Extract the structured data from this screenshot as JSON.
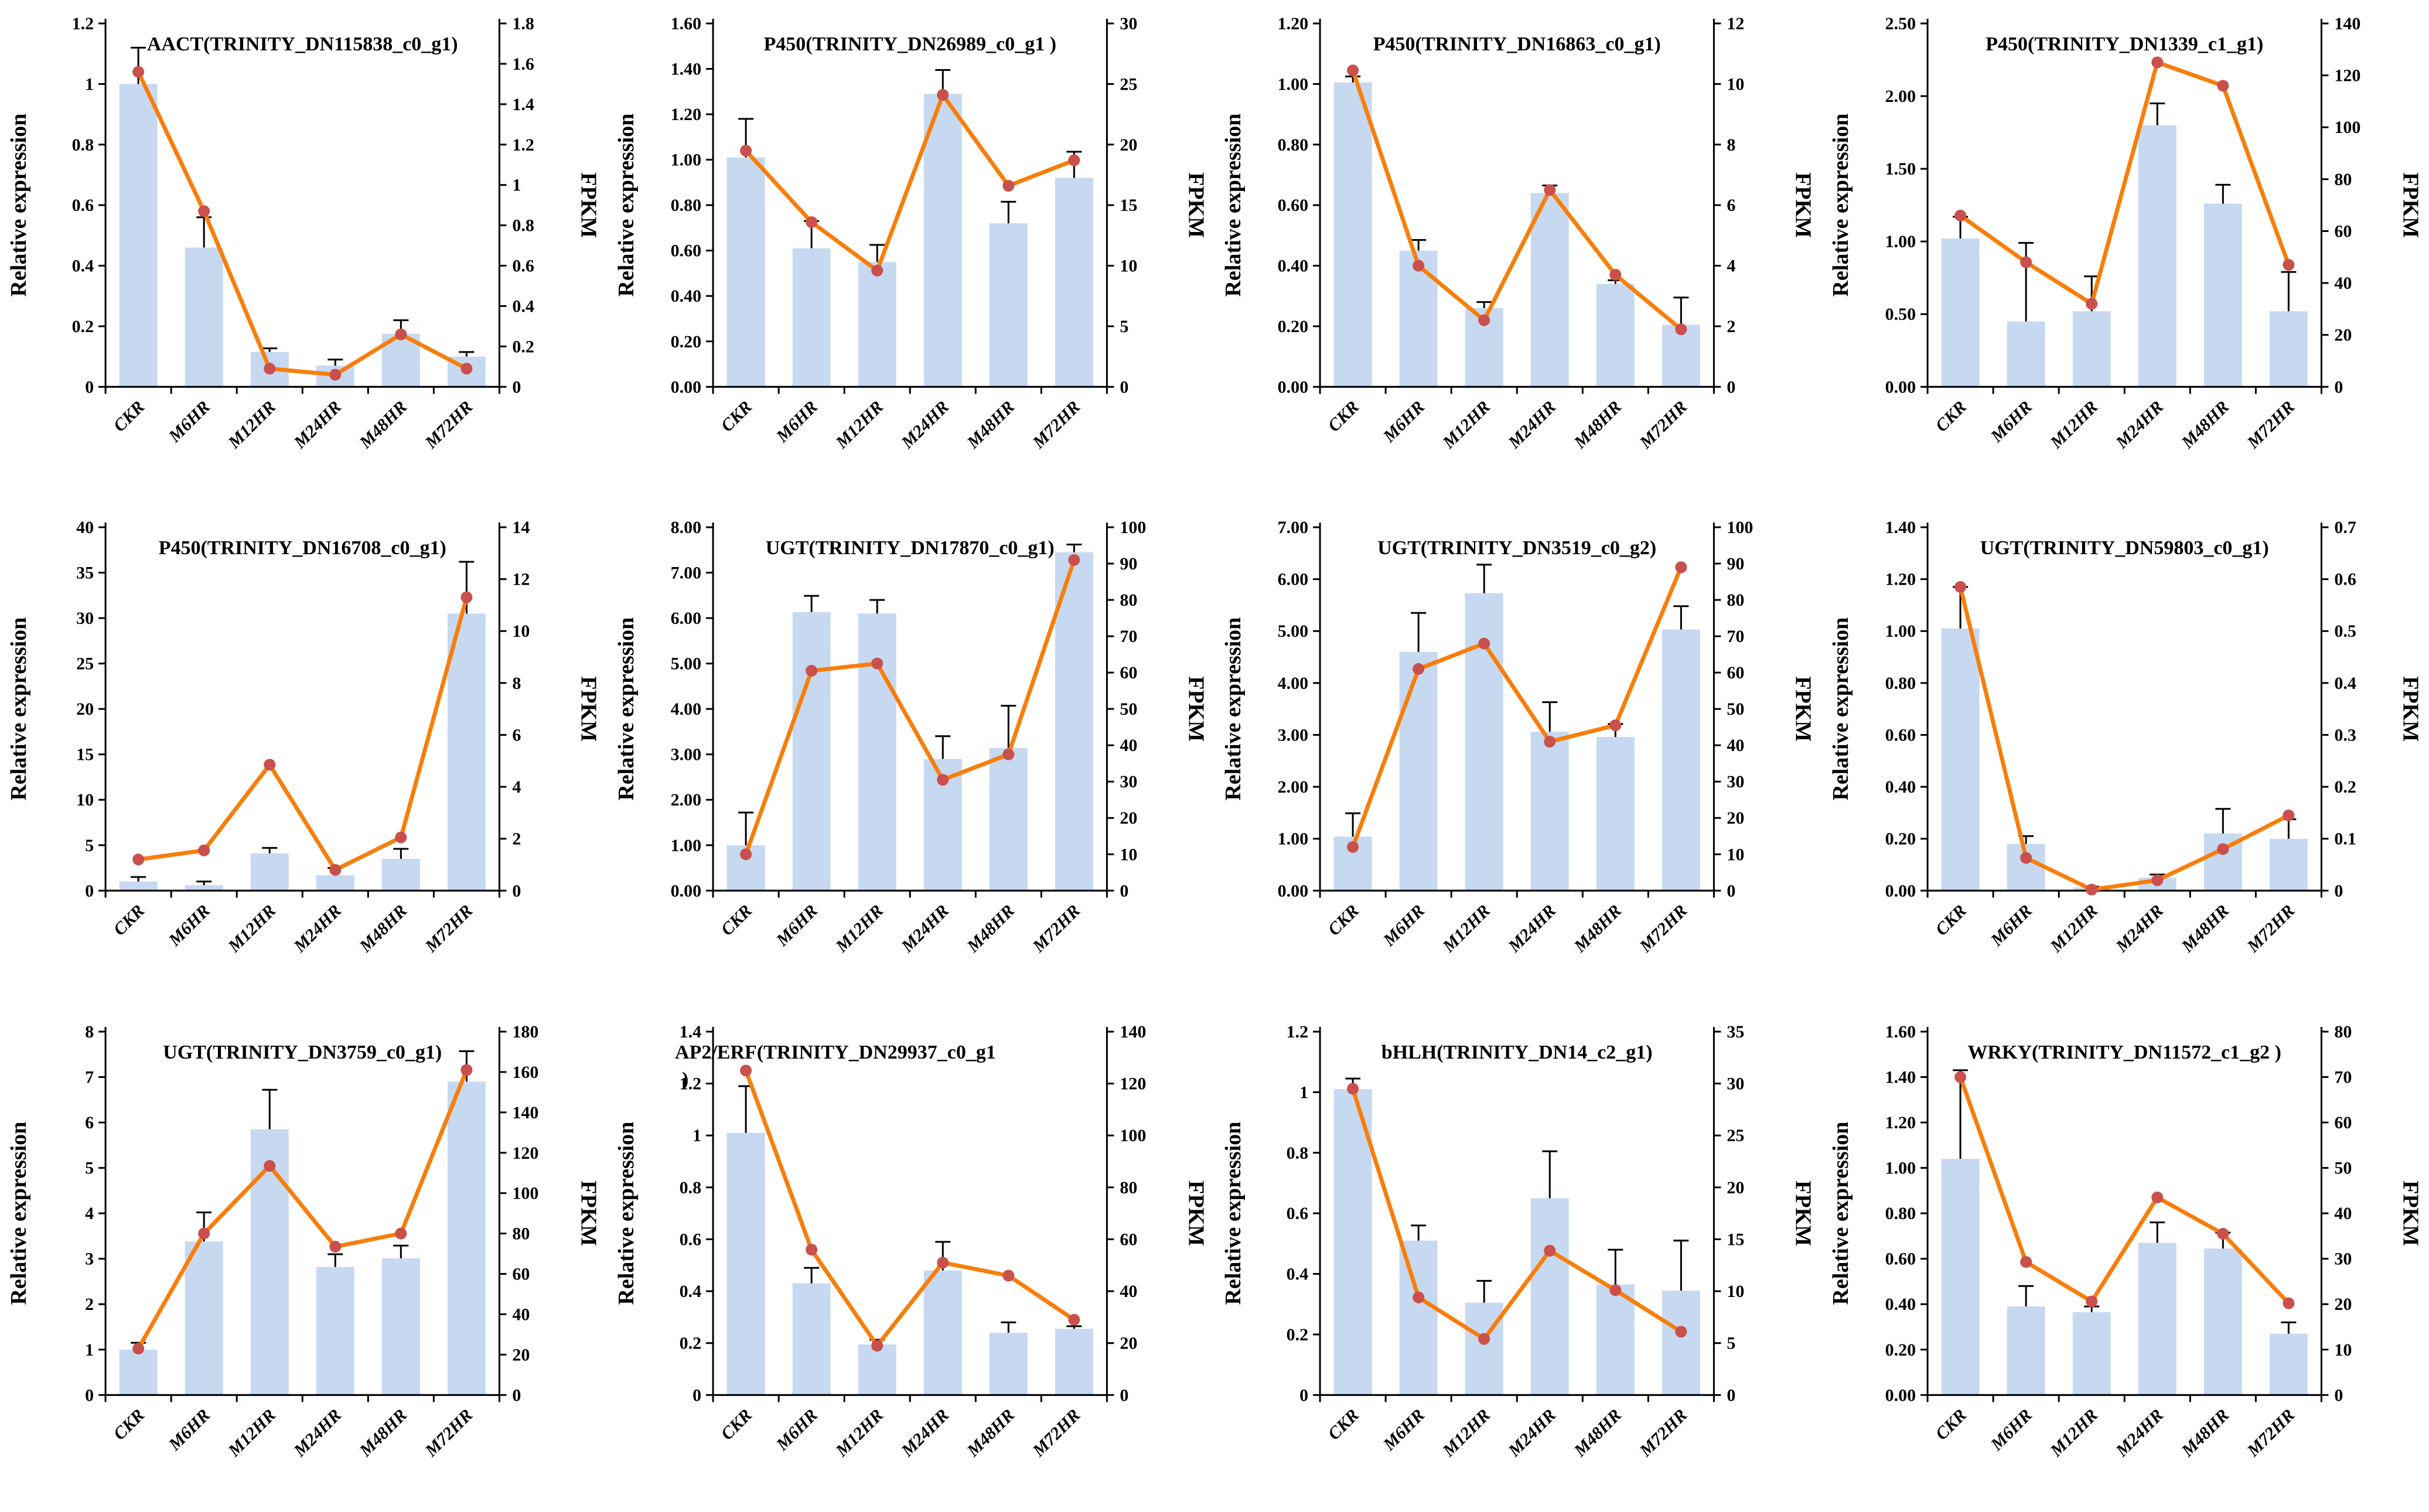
{
  "figure": {
    "categories": [
      "CKR",
      "M6HR",
      "M12HR",
      "M24HR",
      "M48HR",
      "M72HR"
    ],
    "left_axis_title": "Relative expression",
    "right_axis_title": "FPKM"
  },
  "colors": {
    "bar": "#c7d9f0",
    "line": "#f87e0b",
    "marker": "#c9504c",
    "axis": "#000000",
    "error": "#000000"
  },
  "chart_data": [
    {
      "type": "bar+line",
      "title": "AACT(TRINITY_DN115838_c0_g1)",
      "left": {
        "label": "Relative expression",
        "min": 0,
        "max": 1.2,
        "ticks": [
          "0",
          "0.2",
          "0.4",
          "0.6",
          "0.8",
          "1",
          "1.2"
        ]
      },
      "right": {
        "label": "FPKM",
        "min": 0,
        "max": 1.8,
        "ticks": [
          "0",
          "0.2",
          "0.4",
          "0.6",
          "0.8",
          "1",
          "1.2",
          "1.4",
          "1.6",
          "1.8"
        ]
      },
      "categories": [
        "CKR",
        "M6HR",
        "M12HR",
        "M24HR",
        "M48HR",
        "M72HR"
      ],
      "bars": [
        1.0,
        0.46,
        0.115,
        0.07,
        0.175,
        0.1
      ],
      "errors": [
        0.12,
        0.1,
        0.012,
        0.02,
        0.045,
        0.015
      ],
      "fpkm": [
        1.56,
        0.87,
        0.09,
        0.06,
        0.26,
        0.09
      ]
    },
    {
      "type": "bar+line",
      "title": "P450(TRINITY_DN26989_c0_g1 )",
      "left": {
        "label": "Relative expression",
        "min": 0,
        "max": 1.6,
        "ticks": [
          "0.00",
          "0.20",
          "0.40",
          "0.60",
          "0.80",
          "1.00",
          "1.20",
          "1.40",
          "1.60"
        ]
      },
      "right": {
        "label": "FPKM",
        "min": 0,
        "max": 30,
        "ticks": [
          "0",
          "5",
          "10",
          "15",
          "20",
          "25",
          "30"
        ]
      },
      "categories": [
        "CKR",
        "M6HR",
        "M12HR",
        "M24HR",
        "M48HR",
        "M72HR"
      ],
      "bars": [
        1.01,
        0.61,
        0.55,
        1.29,
        0.72,
        0.92
      ],
      "errors": [
        0.17,
        0.12,
        0.075,
        0.105,
        0.095,
        0.115
      ],
      "fpkm": [
        19.5,
        13.6,
        9.6,
        24.1,
        16.6,
        18.7
      ]
    },
    {
      "type": "bar+line",
      "title": "P450(TRINITY_DN16863_c0_g1)",
      "left": {
        "label": "Relative expression",
        "min": 0,
        "max": 1.2,
        "ticks": [
          "0.00",
          "0.20",
          "0.40",
          "0.60",
          "0.80",
          "1.00",
          "1.20"
        ]
      },
      "right": {
        "label": "FPKM",
        "min": 0,
        "max": 12,
        "ticks": [
          "0",
          "2",
          "4",
          "6",
          "8",
          "10",
          "12"
        ]
      },
      "categories": [
        "CKR",
        "M6HR",
        "M12HR",
        "M24HR",
        "M48HR",
        "M72HR"
      ],
      "bars": [
        1.005,
        0.45,
        0.26,
        0.64,
        0.34,
        0.205
      ],
      "errors": [
        0.02,
        0.035,
        0.02,
        0.025,
        0.012,
        0.09
      ],
      "fpkm": [
        10.45,
        4.0,
        2.2,
        6.5,
        3.7,
        1.9
      ]
    },
    {
      "type": "bar+line",
      "title": "P450(TRINITY_DN1339_c1_g1)",
      "left": {
        "label": "Relative expression",
        "min": 0,
        "max": 2.5,
        "ticks": [
          "0.00",
          "0.50",
          "1.00",
          "1.50",
          "2.00",
          "2.50"
        ]
      },
      "right": {
        "label": "FPKM",
        "min": 0,
        "max": 140,
        "ticks": [
          "0",
          "20",
          "40",
          "60",
          "80",
          "100",
          "120",
          "140"
        ]
      },
      "categories": [
        "CKR",
        "M6HR",
        "M12HR",
        "M24HR",
        "M48HR",
        "M72HR"
      ],
      "bars": [
        1.02,
        0.45,
        0.52,
        1.8,
        1.26,
        0.52
      ],
      "errors": [
        0.15,
        0.54,
        0.24,
        0.15,
        0.13,
        0.27
      ],
      "fpkm": [
        66,
        48,
        32,
        125,
        116,
        47
      ]
    },
    {
      "type": "bar+line",
      "title": "P450(TRINITY_DN16708_c0_g1)",
      "left": {
        "label": "Relative expression",
        "min": 0,
        "max": 40,
        "ticks": [
          "0",
          "5",
          "10",
          "15",
          "20",
          "25",
          "30",
          "35",
          "40"
        ]
      },
      "right": {
        "label": "FPKM",
        "min": 0,
        "max": 14,
        "ticks": [
          "0",
          "2",
          "4",
          "6",
          "8",
          "10",
          "12",
          "14"
        ]
      },
      "categories": [
        "CKR",
        "M6HR",
        "M12HR",
        "M24HR",
        "M48HR",
        "M72HR"
      ],
      "bars": [
        1.0,
        0.6,
        4.1,
        1.7,
        3.5,
        30.5
      ],
      "errors": [
        0.5,
        0.4,
        0.6,
        0.8,
        1.1,
        5.7
      ],
      "fpkm": [
        1.2,
        1.55,
        4.85,
        0.8,
        2.05,
        11.3
      ]
    },
    {
      "type": "bar+line",
      "title": "UGT(TRINITY_DN17870_c0_g1)",
      "left": {
        "label": "Relative expression",
        "min": 0,
        "max": 8,
        "ticks": [
          "0.00",
          "1.00",
          "2.00",
          "3.00",
          "4.00",
          "5.00",
          "6.00",
          "7.00",
          "8.00"
        ]
      },
      "right": {
        "label": "FPKM",
        "min": 0,
        "max": 100,
        "ticks": [
          "0",
          "10",
          "20",
          "30",
          "40",
          "50",
          "60",
          "70",
          "80",
          "90",
          "100"
        ]
      },
      "categories": [
        "CKR",
        "M6HR",
        "M12HR",
        "M24HR",
        "M48HR",
        "M72HR"
      ],
      "bars": [
        1.0,
        6.13,
        6.1,
        2.9,
        3.14,
        7.45
      ],
      "errors": [
        0.72,
        0.36,
        0.3,
        0.5,
        0.93,
        0.17
      ],
      "fpkm": [
        10,
        60.5,
        62.5,
        30.5,
        37.5,
        91
      ]
    },
    {
      "type": "bar+line",
      "title": "UGT(TRINITY_DN3519_c0_g2)",
      "left": {
        "label": "Relative expression",
        "min": 0,
        "max": 7,
        "ticks": [
          "0.00",
          "1.00",
          "2.00",
          "3.00",
          "4.00",
          "5.00",
          "6.00",
          "7.00"
        ]
      },
      "right": {
        "label": "FPKM",
        "min": 0,
        "max": 100,
        "ticks": [
          "0",
          "10",
          "20",
          "30",
          "40",
          "50",
          "60",
          "70",
          "80",
          "90",
          "100"
        ]
      },
      "categories": [
        "CKR",
        "M6HR",
        "M12HR",
        "M24HR",
        "M48HR",
        "M72HR"
      ],
      "bars": [
        1.04,
        4.6,
        5.73,
        3.06,
        2.96,
        5.03
      ],
      "errors": [
        0.45,
        0.75,
        0.55,
        0.57,
        0.25,
        0.45
      ],
      "fpkm": [
        12,
        61,
        68,
        41,
        45.5,
        89
      ]
    },
    {
      "type": "bar+line",
      "title": "UGT(TRINITY_DN59803_c0_g1)",
      "left": {
        "label": "Relative expression",
        "min": 0,
        "max": 1.4,
        "ticks": [
          "0.00",
          "0.20",
          "0.40",
          "0.60",
          "0.80",
          "1.00",
          "1.20",
          "1.40"
        ]
      },
      "right": {
        "label": "FPKM",
        "min": 0,
        "max": 0.7,
        "ticks": [
          "0",
          "0.1",
          "0.2",
          "0.3",
          "0.4",
          "0.5",
          "0.6",
          "0.7"
        ]
      },
      "categories": [
        "CKR",
        "M6HR",
        "M12HR",
        "M24HR",
        "M48HR",
        "M72HR"
      ],
      "bars": [
        1.01,
        0.18,
        0.012,
        0.05,
        0.22,
        0.2
      ],
      "errors": [
        0.16,
        0.03,
        0.003,
        0.012,
        0.095,
        0.075
      ],
      "fpkm": [
        0.585,
        0.063,
        0.002,
        0.02,
        0.08,
        0.145
      ]
    },
    {
      "type": "bar+line",
      "title": "UGT(TRINITY_DN3759_c0_g1)",
      "left": {
        "label": "Relative expression",
        "min": 0,
        "max": 8,
        "ticks": [
          "0",
          "1",
          "2",
          "3",
          "4",
          "5",
          "6",
          "7",
          "8"
        ]
      },
      "right": {
        "label": "FPKM",
        "min": 0,
        "max": 180,
        "ticks": [
          "0",
          "20",
          "40",
          "60",
          "80",
          "100",
          "120",
          "140",
          "160",
          "180"
        ]
      },
      "categories": [
        "CKR",
        "M6HR",
        "M12HR",
        "M24HR",
        "M48HR",
        "M72HR"
      ],
      "bars": [
        1.0,
        3.38,
        5.85,
        2.82,
        3.01,
        6.9
      ],
      "errors": [
        0.15,
        0.64,
        0.87,
        0.28,
        0.28,
        0.67
      ],
      "fpkm": [
        23,
        80,
        113.5,
        73.5,
        80,
        161
      ]
    },
    {
      "type": "bar+line",
      "title": "AP2/ERF(TRINITY_DN29937_c0_g1",
      "title2": ")",
      "title_align": "left",
      "left": {
        "label": "Relative expression",
        "min": 0,
        "max": 1.4,
        "ticks": [
          "0",
          "0.2",
          "0.4",
          "0.6",
          "0.8",
          "1",
          "1.2",
          "1.4"
        ]
      },
      "right": {
        "label": "FPKM",
        "min": 0,
        "max": 140,
        "ticks": [
          "0",
          "20",
          "40",
          "60",
          "80",
          "100",
          "120",
          "140"
        ]
      },
      "categories": [
        "CKR",
        "M6HR",
        "M12HR",
        "M24HR",
        "M48HR",
        "M72HR"
      ],
      "bars": [
        1.01,
        0.43,
        0.195,
        0.48,
        0.24,
        0.255
      ],
      "errors": [
        0.18,
        0.06,
        0.018,
        0.11,
        0.04,
        0.01
      ],
      "fpkm": [
        125,
        56,
        19,
        51,
        46,
        29
      ]
    },
    {
      "type": "bar+line",
      "title": "bHLH(TRINITY_DN14_c2_g1)",
      "left": {
        "label": "Relative expression",
        "min": 0,
        "max": 1.2,
        "ticks": [
          "0",
          "0.2",
          "0.4",
          "0.6",
          "0.8",
          "1",
          "1.2"
        ]
      },
      "right": {
        "label": "FPKM",
        "min": 0,
        "max": 35,
        "ticks": [
          "0",
          "5",
          "10",
          "15",
          "20",
          "25",
          "30",
          "35"
        ]
      },
      "categories": [
        "CKR",
        "M6HR",
        "M12HR",
        "M24HR",
        "M48HR",
        "M72HR"
      ],
      "bars": [
        1.01,
        0.51,
        0.305,
        0.65,
        0.365,
        0.345
      ],
      "errors": [
        0.035,
        0.05,
        0.072,
        0.155,
        0.115,
        0.165
      ],
      "fpkm": [
        29.5,
        9.4,
        5.4,
        13.9,
        10.1,
        6.1
      ]
    },
    {
      "type": "bar+line",
      "title": "WRKY(TRINITY_DN11572_c1_g2 )",
      "left": {
        "label": "Relative expression",
        "min": 0,
        "max": 1.6,
        "ticks": [
          "0.00",
          "0.20",
          "0.40",
          "0.60",
          "0.80",
          "1.00",
          "1.20",
          "1.40",
          "1.60"
        ]
      },
      "right": {
        "label": "FPKM",
        "min": 0,
        "max": 80,
        "ticks": [
          "0",
          "10",
          "20",
          "30",
          "40",
          "50",
          "60",
          "70",
          "80"
        ]
      },
      "categories": [
        "CKR",
        "M6HR",
        "M12HR",
        "M24HR",
        "M48HR",
        "M72HR"
      ],
      "bars": [
        1.04,
        0.39,
        0.365,
        0.67,
        0.645,
        0.27
      ],
      "errors": [
        0.39,
        0.09,
        0.025,
        0.09,
        0.07,
        0.05
      ],
      "fpkm": [
        70,
        29.3,
        20.6,
        43.5,
        35.5,
        20.2
      ]
    }
  ]
}
